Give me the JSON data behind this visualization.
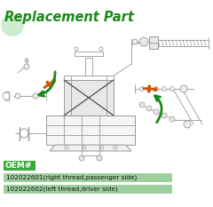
{
  "title": "Replacement Part",
  "title_color": "#1a8a1a",
  "bg_color": "#ffffff",
  "oem_label": "OEM#",
  "oem_bg": "#3aaa3a",
  "oem_text_color": "#ffffff",
  "oem_font_size": 6.5,
  "part1_text": "102022601(right thread,passenger side)",
  "part2_text": "102022602(left thread,driver side)",
  "part_bg": "#9ecf9e",
  "part_text_color": "#111111",
  "part_font_size": 5.2,
  "diagram_line_color": "#999999",
  "diagram_dark_color": "#555555",
  "highlight_color": "#d45500",
  "arrow_color": "#1a8a1a",
  "title_font_size": 10.5,
  "bg_top_circle_color": "#d0ecd0"
}
